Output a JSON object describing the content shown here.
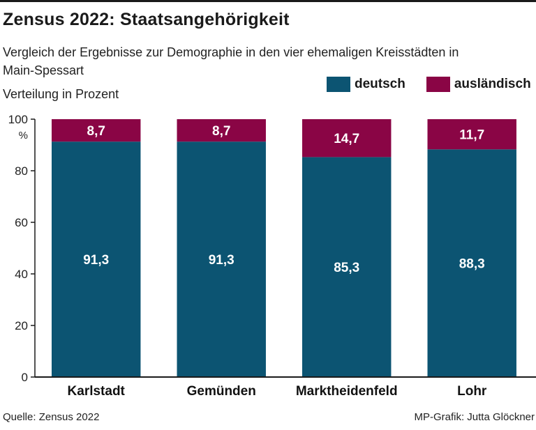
{
  "title": "Zensus 2022: Staatsangehörigkeit",
  "subtitle": "Vergleich der Ergebnisse zur Demographie in den vier ehemaligen Kreisstädten in Main-Spessart",
  "unit_label": "Verteilung in Prozent",
  "legend": [
    {
      "label": "deutsch",
      "color": "#0c5472"
    },
    {
      "label": "ausländisch",
      "color": "#8a0545"
    }
  ],
  "source": "Quelle: Zensus 2022",
  "credit": "MP-Grafik: Jutta Glöckner",
  "chart_data": {
    "type": "bar",
    "stacked": true,
    "title": "Zensus 2022: Staatsangehörigkeit",
    "ylabel": "Verteilung in Prozent",
    "y_unit": "%",
    "categories": [
      "Karlstadt",
      "Gemünden",
      "Marktheidenfeld",
      "Lohr"
    ],
    "series": [
      {
        "name": "deutsch",
        "values": [
          91.3,
          91.3,
          85.3,
          88.3
        ],
        "labels": [
          "91,3",
          "91,3",
          "85,3",
          "88,3"
        ],
        "color": "#0c5472"
      },
      {
        "name": "ausländisch",
        "values": [
          8.7,
          8.7,
          14.7,
          11.7
        ],
        "labels": [
          "8,7",
          "8,7",
          "14,7",
          "11,7"
        ],
        "color": "#8a0545"
      }
    ],
    "ylim": [
      0,
      100
    ],
    "yticks": [
      0,
      20,
      40,
      60,
      80,
      100
    ],
    "grid": false,
    "legend": "top-right"
  }
}
